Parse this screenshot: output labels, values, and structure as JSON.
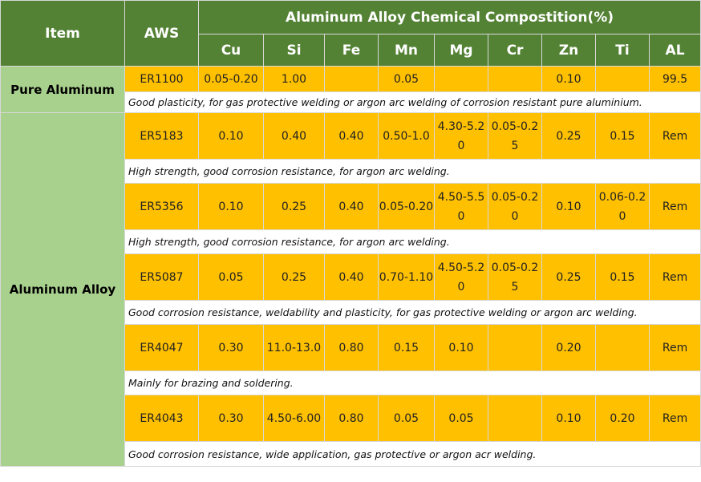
{
  "header": {
    "item": "Item",
    "aws": "AWS",
    "group": "Aluminum Alloy Chemical Compostition(%)",
    "elements": [
      "Cu",
      "Si",
      "Fe",
      "Mn",
      "Mg",
      "Cr",
      "Zn",
      "Ti",
      "AL"
    ]
  },
  "categories": {
    "pure": "Pure Aluminum",
    "alloy": "Aluminum Alloy"
  },
  "rows": [
    {
      "aws": "ER1100",
      "values": [
        "0.05-0.20",
        "1.00",
        "",
        "0.05",
        "",
        "",
        "0.10",
        "",
        "99.5"
      ],
      "note": "Good plasticity, for gas protective welding or argon arc welding of corrosion resistant pure aluminium."
    },
    {
      "aws": "ER5183",
      "values": [
        "0.10",
        "0.40",
        "0.40",
        "0.50-1.0",
        "4.30-5.20",
        "0.05-0.25",
        "0.25",
        "0.15",
        "Rem"
      ],
      "note": "High strength, good corrosion resistance, for argon arc welding."
    },
    {
      "aws": "ER5356",
      "values": [
        "0.10",
        "0.25",
        "0.40",
        "0.05-0.20",
        "4.50-5.50",
        "0.05-0.20",
        "0.10",
        "0.06-0.20",
        "Rem"
      ],
      "note": "High strength, good corrosion resistance, for argon arc welding."
    },
    {
      "aws": "ER5087",
      "values": [
        "0.05",
        "0.25",
        "0.40",
        "0.70-1.10",
        "4.50-5.20",
        "0.05-0.25",
        "0.25",
        "0.15",
        "Rem"
      ],
      "note": "Good corrosion resistance, weldability and plasticity, for gas protective welding or argon arc welding."
    },
    {
      "aws": "ER4047",
      "values": [
        "0.30",
        "11.0-13.0",
        "0.80",
        "0.15",
        "0.10",
        "",
        "0.20",
        "",
        "Rem"
      ],
      "note": "Mainly for brazing and soldering."
    },
    {
      "aws": "ER4043",
      "values": [
        "0.30",
        "4.50-6.00",
        "0.80",
        "0.05",
        "0.05",
        "",
        "0.10",
        "0.20",
        "Rem"
      ],
      "note": "Good corrosion resistance, wide application, gas protective or argon acr welding."
    }
  ]
}
